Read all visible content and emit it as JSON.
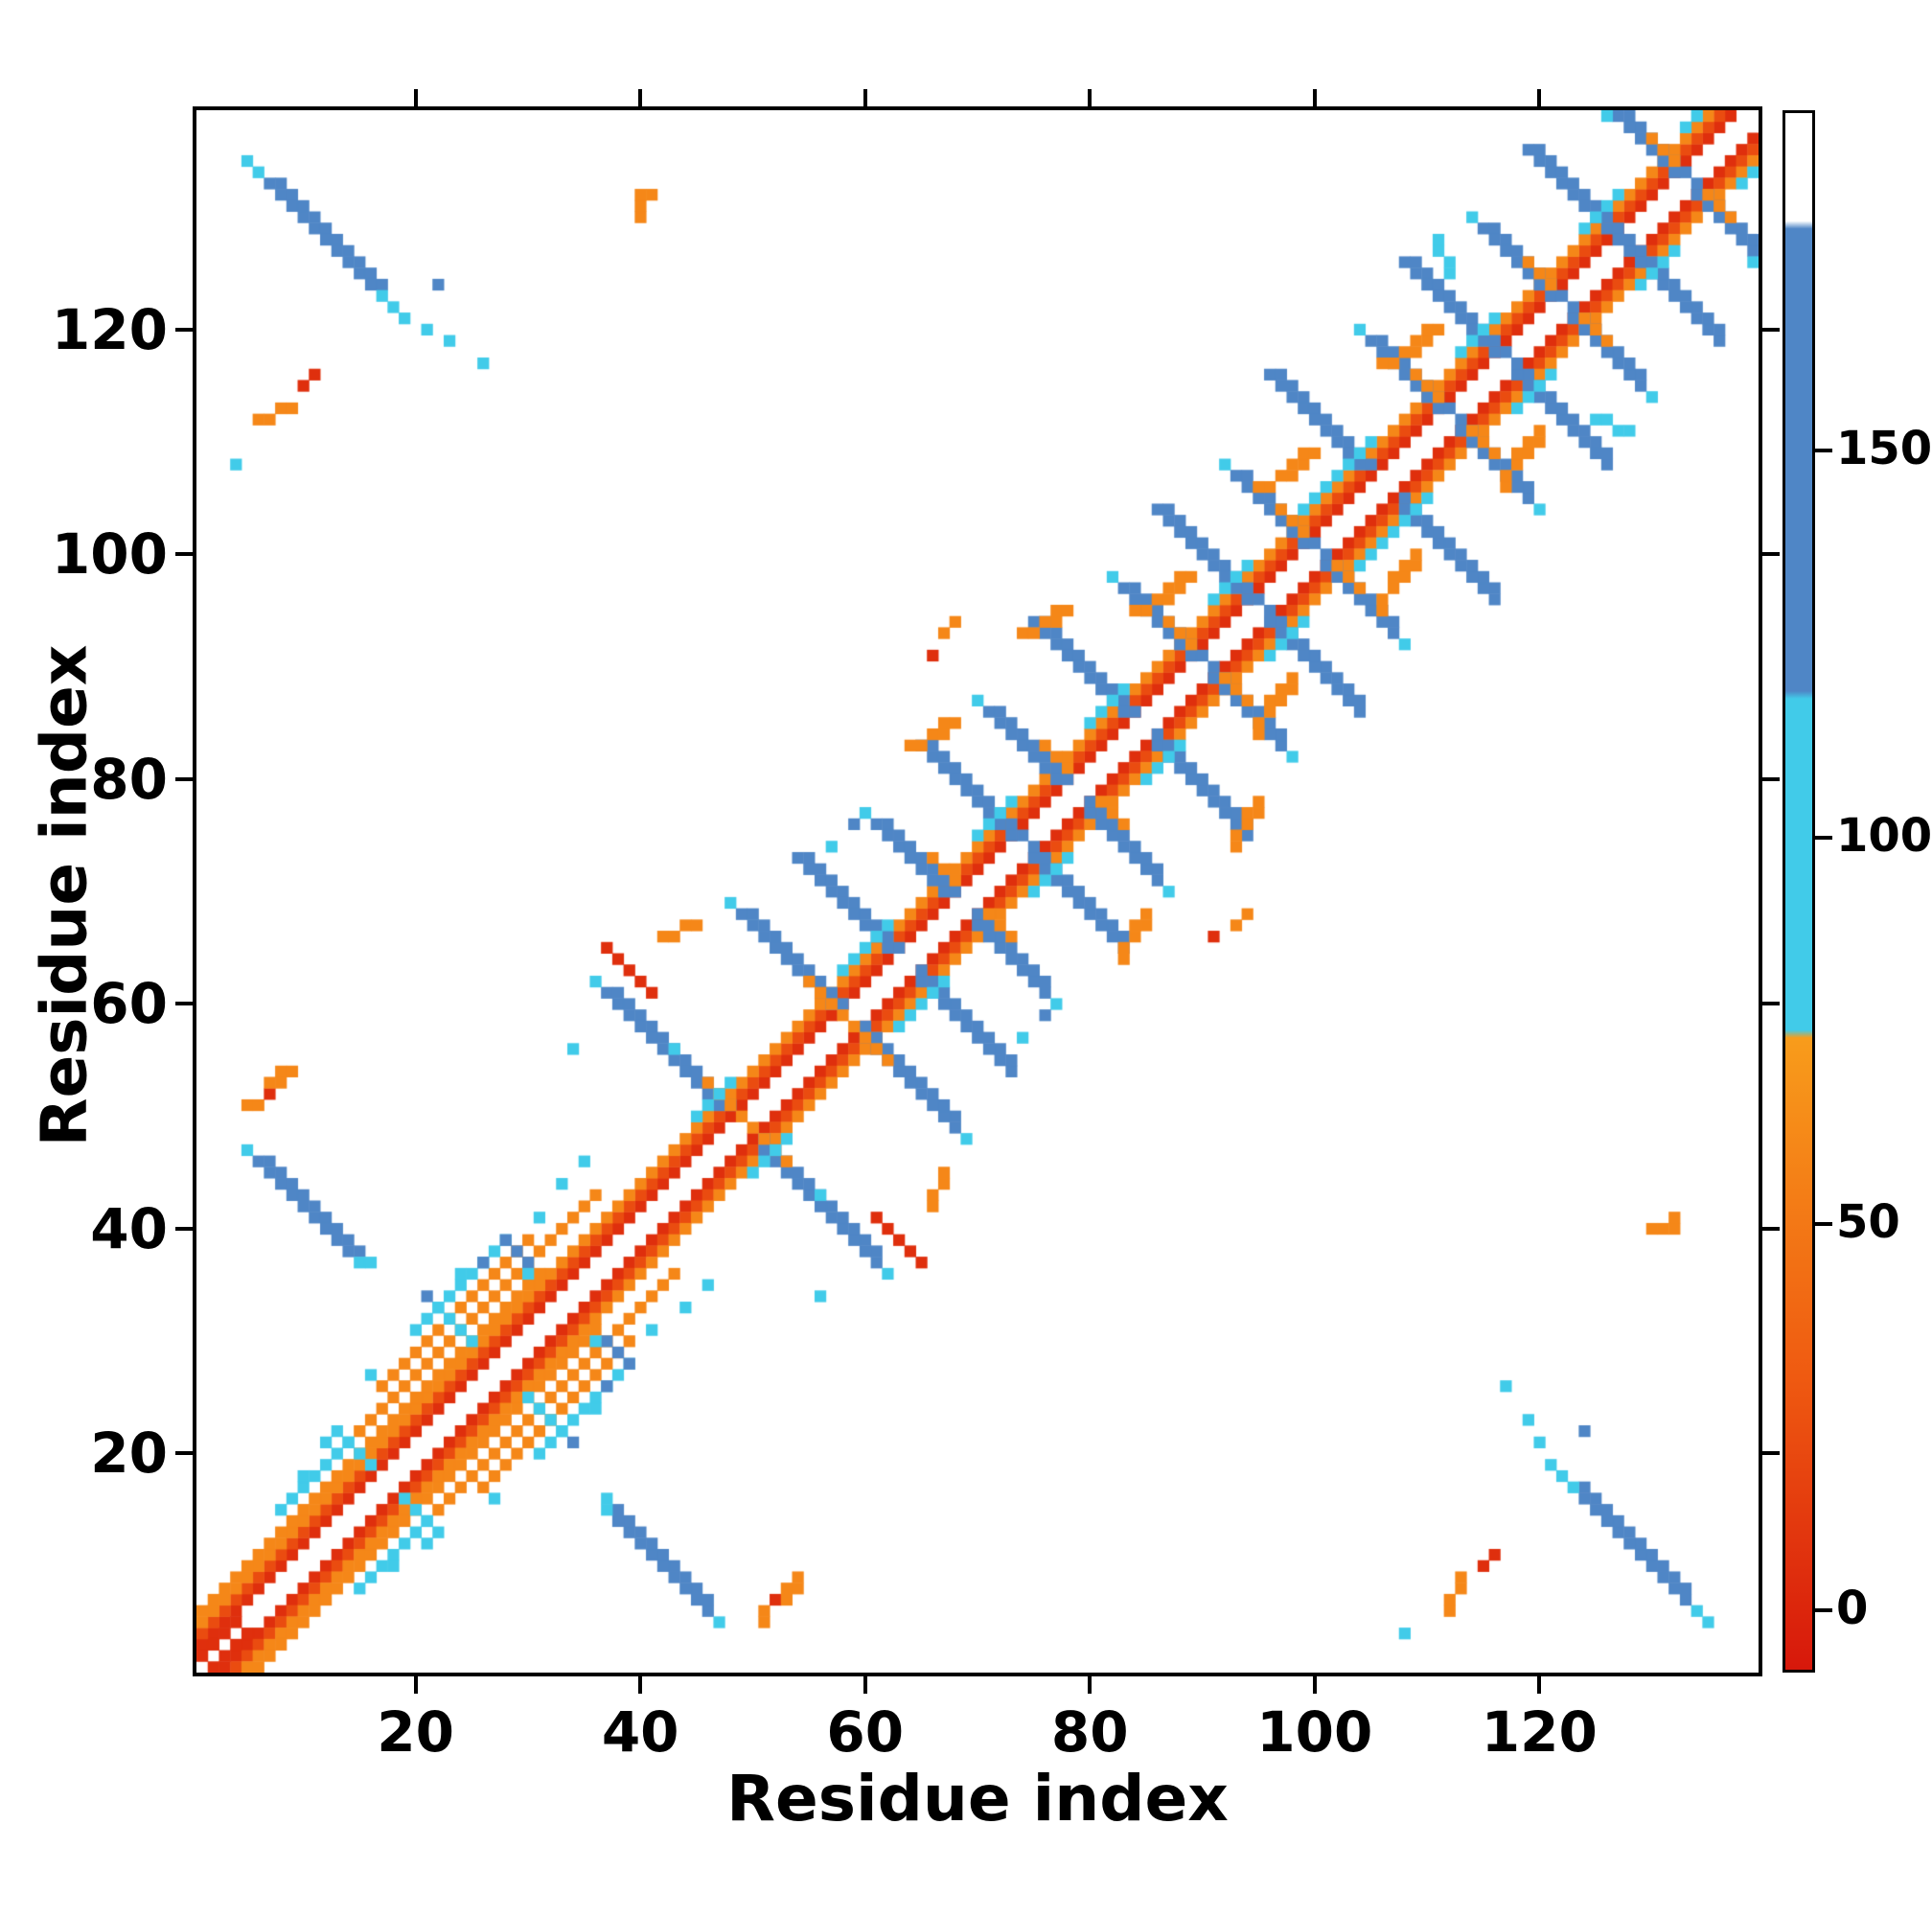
{
  "chart_data": {
    "type": "heatmap",
    "title": "",
    "xlabel": "Residue index",
    "ylabel": "Residue index",
    "x_range": [
      1,
      139
    ],
    "y_range": [
      1,
      139
    ],
    "x_ticks": [
      20,
      40,
      60,
      80,
      100,
      120
    ],
    "y_ticks": [
      20,
      40,
      60,
      80,
      100,
      120
    ],
    "grid": false,
    "symmetric": true,
    "background": "#ffffff",
    "colorbar": {
      "position": "right",
      "ticks": [
        0,
        50,
        100,
        150
      ],
      "vmin": -8,
      "vmax": 194,
      "stops": [
        {
          "v": -8,
          "color": "#d7180b"
        },
        {
          "v": 30,
          "color": "#ef5a11"
        },
        {
          "v": 74,
          "color": "#f89c1b"
        },
        {
          "v": 75,
          "color": "#41cbe9"
        },
        {
          "v": 118,
          "color": "#41cbe9"
        },
        {
          "v": 119,
          "color": "#4f86c6"
        },
        {
          "v": 179,
          "color": "#4f86c6"
        },
        {
          "v": 180,
          "color": "#ffffff"
        },
        {
          "v": 194,
          "color": "#ffffff"
        }
      ]
    },
    "segment_format": [
      "x",
      "y",
      "dx",
      "dy",
      "len",
      "value",
      "width"
    ],
    "segments": [
      [
        1,
        3,
        1,
        1,
        137,
        5,
        1
      ],
      [
        1,
        4,
        1,
        1,
        136,
        22,
        1
      ],
      [
        1,
        5,
        1,
        1,
        135,
        60,
        1
      ],
      [
        1,
        6,
        1,
        1,
        31,
        60,
        1
      ],
      [
        1,
        2,
        1,
        1,
        4,
        5,
        1
      ],
      [
        15,
        22,
        1,
        1,
        22,
        60,
        1
      ],
      [
        17,
        26,
        1,
        1,
        14,
        60,
        1
      ],
      [
        8,
        15,
        1,
        1,
        7,
        95,
        1
      ],
      [
        20,
        31,
        1,
        1,
        9,
        95,
        1
      ],
      [
        13,
        22,
        1,
        -1,
        4,
        95,
        1
      ],
      [
        22,
        33,
        1,
        -1,
        4,
        95,
        1
      ],
      [
        28,
        39,
        1,
        -1,
        3,
        145,
        1
      ],
      [
        10,
        18,
        1,
        0,
        1,
        95,
        1
      ],
      [
        12,
        21,
        1,
        0,
        1,
        95,
        1
      ],
      [
        16,
        27,
        1,
        0,
        1,
        95,
        1
      ],
      [
        21,
        34,
        1,
        0,
        1,
        145,
        1
      ],
      [
        24,
        36,
        1,
        0,
        1,
        95,
        1
      ],
      [
        26,
        37,
        1,
        0,
        1,
        145,
        1
      ],
      [
        30,
        36,
        1,
        0,
        1,
        95,
        1
      ],
      [
        31,
        41,
        1,
        0,
        1,
        95,
        1
      ],
      [
        33,
        44,
        1,
        0,
        1,
        95,
        1
      ],
      [
        35,
        46,
        1,
        0,
        1,
        95,
        1
      ],
      [
        6,
        46,
        1,
        -1,
        9,
        145,
        2
      ],
      [
        5,
        47,
        1,
        -1,
        1,
        95,
        1
      ],
      [
        15,
        37,
        1,
        0,
        2,
        95,
        1
      ],
      [
        5,
        51,
        1,
        0,
        2,
        60,
        1
      ],
      [
        7,
        52,
        1,
        0,
        1,
        5,
        1
      ],
      [
        7,
        53,
        1,
        0,
        2,
        60,
        1
      ],
      [
        8,
        54,
        1,
        0,
        2,
        60,
        1
      ],
      [
        37,
        61,
        1,
        -1,
        11,
        145,
        2
      ],
      [
        46,
        53,
        1,
        -1,
        4,
        60,
        1
      ],
      [
        49,
        68,
        1,
        -1,
        9,
        145,
        2
      ],
      [
        55,
        62,
        1,
        -1,
        4,
        60,
        1
      ],
      [
        61,
        76,
        1,
        -1,
        7,
        145,
        2
      ],
      [
        66,
        73,
        1,
        -1,
        3,
        60,
        1
      ],
      [
        71,
        86,
        1,
        -1,
        7,
        145,
        2
      ],
      [
        76,
        83,
        1,
        -1,
        3,
        60,
        1
      ],
      [
        83,
        97,
        1,
        -1,
        7,
        145,
        2
      ],
      [
        87,
        94,
        1,
        -1,
        3,
        60,
        1
      ],
      [
        93,
        107,
        1,
        -1,
        7,
        145,
        2
      ],
      [
        97,
        104,
        1,
        -1,
        3,
        60,
        1
      ],
      [
        105,
        119,
        1,
        -1,
        7,
        145,
        2
      ],
      [
        109,
        116,
        1,
        -1,
        3,
        60,
        1
      ],
      [
        115,
        129,
        1,
        -1,
        7,
        145,
        2
      ],
      [
        119,
        126,
        1,
        -1,
        3,
        60,
        1
      ],
      [
        127,
        139,
        1,
        -1,
        6,
        145,
        2
      ],
      [
        130,
        137,
        1,
        -1,
        3,
        60,
        1
      ],
      [
        54,
        73,
        1,
        -1,
        9,
        145,
        2
      ],
      [
        65,
        83,
        1,
        -1,
        9,
        145,
        2
      ],
      [
        75,
        94,
        1,
        -1,
        9,
        145,
        2
      ],
      [
        86,
        104,
        1,
        -1,
        9,
        145,
        2
      ],
      [
        96,
        116,
        1,
        -1,
        9,
        145,
        2
      ],
      [
        108,
        126,
        1,
        -1,
        9,
        145,
        2
      ],
      [
        119,
        136,
        1,
        -1,
        9,
        145,
        2
      ],
      [
        36,
        62,
        1,
        0,
        1,
        95,
        1
      ],
      [
        48,
        69,
        1,
        0,
        1,
        95,
        1
      ],
      [
        60,
        77,
        1,
        0,
        1,
        95,
        1
      ],
      [
        70,
        87,
        1,
        0,
        1,
        95,
        1
      ],
      [
        82,
        98,
        1,
        0,
        1,
        95,
        1
      ],
      [
        92,
        108,
        1,
        0,
        1,
        95,
        1
      ],
      [
        104,
        120,
        1,
        0,
        1,
        95,
        1
      ],
      [
        114,
        130,
        1,
        0,
        1,
        95,
        1
      ],
      [
        126,
        139,
        1,
        0,
        1,
        95,
        1
      ],
      [
        45,
        50,
        1,
        1,
        4,
        95,
        1
      ],
      [
        58,
        63,
        1,
        1,
        5,
        95,
        1
      ],
      [
        70,
        75,
        1,
        1,
        4,
        95,
        1
      ],
      [
        80,
        85,
        1,
        1,
        4,
        95,
        1
      ],
      [
        91,
        96,
        1,
        1,
        4,
        95,
        1
      ],
      [
        99,
        104,
        1,
        1,
        7,
        95,
        1
      ],
      [
        113,
        118,
        1,
        1,
        4,
        95,
        1
      ],
      [
        124,
        129,
        1,
        1,
        4,
        95,
        1
      ],
      [
        133,
        138,
        1,
        1,
        2,
        95,
        1
      ],
      [
        84,
        95,
        1,
        0,
        2,
        60,
        1
      ],
      [
        86,
        96,
        1,
        0,
        2,
        60,
        1
      ],
      [
        87,
        97,
        1,
        0,
        2,
        60,
        1
      ],
      [
        88,
        98,
        1,
        0,
        2,
        60,
        1
      ],
      [
        95,
        106,
        1,
        0,
        2,
        60,
        1
      ],
      [
        97,
        107,
        1,
        0,
        2,
        60,
        1
      ],
      [
        98,
        108,
        1,
        0,
        2,
        60,
        1
      ],
      [
        99,
        109,
        1,
        0,
        2,
        60,
        1
      ],
      [
        106,
        117,
        1,
        0,
        2,
        60,
        1
      ],
      [
        108,
        118,
        1,
        0,
        2,
        60,
        1
      ],
      [
        109,
        119,
        1,
        0,
        2,
        60,
        1
      ],
      [
        110,
        120,
        1,
        0,
        2,
        60,
        1
      ],
      [
        64,
        83,
        1,
        0,
        2,
        60,
        1
      ],
      [
        66,
        84,
        1,
        0,
        2,
        60,
        1
      ],
      [
        67,
        85,
        1,
        0,
        2,
        60,
        1
      ],
      [
        74,
        93,
        1,
        0,
        2,
        60,
        1
      ],
      [
        76,
        94,
        1,
        0,
        2,
        60,
        1
      ],
      [
        77,
        95,
        1,
        0,
        2,
        60,
        1
      ],
      [
        42,
        66,
        1,
        0,
        2,
        60,
        1
      ],
      [
        44,
        67,
        1,
        0,
        2,
        60,
        1
      ],
      [
        37,
        65,
        1,
        -1,
        5,
        5,
        1
      ],
      [
        59,
        76,
        1,
        0,
        1,
        145,
        1
      ],
      [
        57,
        74,
        1,
        0,
        1,
        95,
        1
      ],
      [
        34,
        56,
        1,
        0,
        1,
        95,
        1
      ],
      [
        43,
        56,
        1,
        0,
        1,
        95,
        1
      ],
      [
        66,
        91,
        1,
        0,
        1,
        5,
        1
      ],
      [
        67,
        93,
        1,
        0,
        1,
        60,
        1
      ],
      [
        68,
        94,
        1,
        0,
        1,
        60,
        1
      ],
      [
        7,
        133,
        1,
        -1,
        10,
        145,
        2
      ],
      [
        5,
        135,
        1,
        -1,
        2,
        95,
        1
      ],
      [
        17,
        123,
        1,
        -1,
        3,
        95,
        1
      ],
      [
        21,
        120,
        1,
        0,
        1,
        95,
        1
      ],
      [
        23,
        119,
        1,
        0,
        1,
        95,
        1
      ],
      [
        26,
        117,
        1,
        0,
        1,
        95,
        1
      ],
      [
        22,
        124,
        1,
        0,
        1,
        145,
        1
      ],
      [
        6,
        112,
        1,
        0,
        2,
        60,
        1
      ],
      [
        8,
        113,
        1,
        0,
        2,
        60,
        1
      ],
      [
        10,
        115,
        1,
        0,
        1,
        5,
        1
      ],
      [
        11,
        116,
        1,
        0,
        1,
        5,
        1
      ],
      [
        4,
        108,
        1,
        0,
        1,
        95,
        1
      ],
      [
        40,
        130,
        0,
        1,
        3,
        60,
        1
      ],
      [
        41,
        132,
        1,
        0,
        1,
        60,
        1
      ],
      [
        125,
        112,
        1,
        0,
        2,
        95,
        1
      ],
      [
        127,
        111,
        1,
        0,
        2,
        95,
        1
      ]
    ]
  }
}
